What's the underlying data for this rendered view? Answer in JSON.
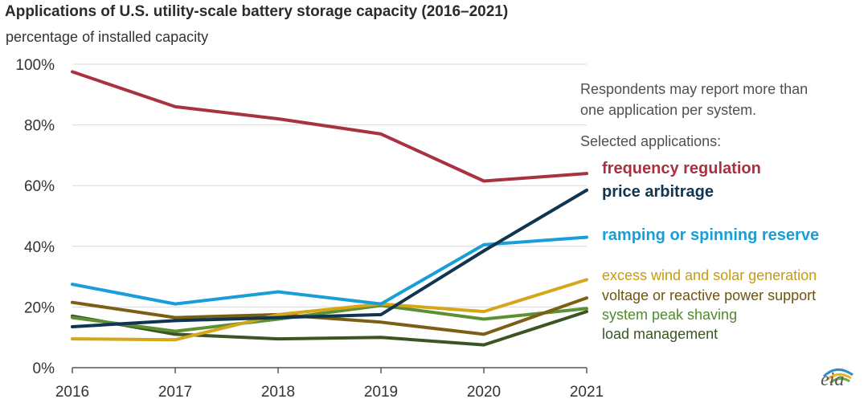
{
  "chart_data": {
    "type": "line",
    "title": "Applications of U.S. utility-scale battery storage capacity (2016–2021)",
    "subtitle": "percentage of installed capacity",
    "x": [
      "2016",
      "2017",
      "2018",
      "2019",
      "2020",
      "2021"
    ],
    "ylim": [
      0,
      100
    ],
    "yticks": [
      "0%",
      "20%",
      "40%",
      "60%",
      "80%",
      "100%"
    ],
    "grid": true,
    "series": [
      {
        "name": "frequency regulation",
        "color": "#a83240",
        "values": [
          97.5,
          86,
          82,
          77,
          61.5,
          64
        ]
      },
      {
        "name": "price arbitrage",
        "color": "#0f3550",
        "values": [
          13.5,
          15.5,
          16.5,
          17.5,
          38.5,
          58.5
        ]
      },
      {
        "name": "ramping or spinning reserve",
        "color": "#189ed8",
        "values": [
          27.5,
          21,
          25,
          21,
          40.5,
          43
        ]
      },
      {
        "name": "excess wind and solar generation",
        "color": "#d5a619",
        "values": [
          9.5,
          9.2,
          17.5,
          21,
          18.5,
          29
        ]
      },
      {
        "name": "voltage or reactive power support",
        "color": "#7b5f14",
        "values": [
          21.5,
          16.5,
          17.5,
          15,
          11,
          23
        ]
      },
      {
        "name": "system peak shaving",
        "color": "#5b9133",
        "values": [
          16.5,
          12,
          16,
          20.5,
          16,
          19.5
        ]
      },
      {
        "name": "load management",
        "color": "#3b5424",
        "values": [
          17,
          11,
          9.5,
          10,
          7.5,
          18.5
        ]
      }
    ],
    "annotations": {
      "note": "Respondents may report more than one application per system.",
      "selected": "Selected applications:"
    }
  },
  "note_line1": "Respondents may report more than",
  "note_line2": "one application per system.",
  "selected_heading": "Selected applications:",
  "logo_text": "eia"
}
